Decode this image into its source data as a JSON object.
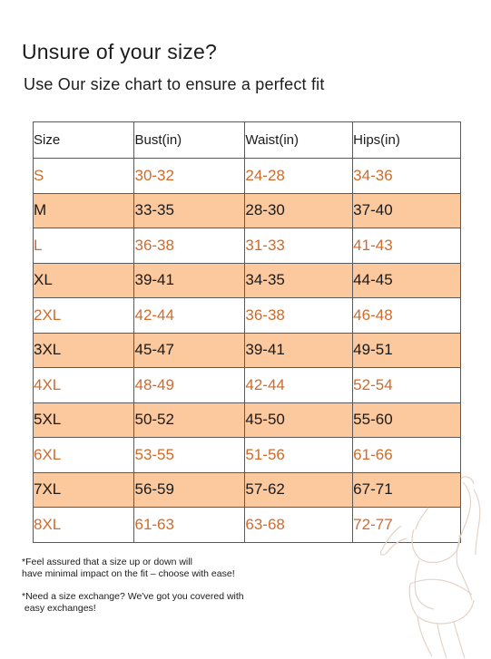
{
  "heading": {
    "title": "Unsure of your size?",
    "subtitle": "Use Our size chart to ensure a perfect fit"
  },
  "table": {
    "headers": [
      "Size",
      "Bust(in)",
      "Waist(in)",
      "Hips(in)"
    ],
    "rows": [
      {
        "size": "S",
        "bust": "30-32",
        "waist": "24-28",
        "hips": "34-36"
      },
      {
        "size": "M",
        "bust": "33-35",
        "waist": "28-30",
        "hips": "37-40"
      },
      {
        "size": "L",
        "bust": "36-38",
        "waist": "31-33",
        "hips": "41-43"
      },
      {
        "size": "XL",
        "bust": "39-41",
        "waist": "34-35",
        "hips": "44-45"
      },
      {
        "size": "2XL",
        "bust": "42-44",
        "waist": "36-38",
        "hips": "46-48"
      },
      {
        "size": "3XL",
        "bust": "45-47",
        "waist": "39-41",
        "hips": "49-51"
      },
      {
        "size": "4XL",
        "bust": "48-49",
        "waist": "42-44",
        "hips": "52-54"
      },
      {
        "size": "5XL",
        "bust": "50-52",
        "waist": "45-50",
        "hips": "55-60"
      },
      {
        "size": "6XL",
        "bust": "53-55",
        "waist": "51-56",
        "hips": "61-66"
      },
      {
        "size": "7XL",
        "bust": "56-59",
        "waist": "57-62",
        "hips": "67-71"
      },
      {
        "size": "8XL",
        "bust": "61-63",
        "waist": "63-68",
        "hips": "72-77"
      }
    ]
  },
  "notes": {
    "fit_line1": "*Feel assured that a size up or down will",
    "fit_line2": "have minimal impact on the fit – choose with ease!",
    "exchange_line1": "*Need a size exchange? We've got you covered with",
    "exchange_line2": " easy exchanges!"
  },
  "colors": {
    "shaded_row": "#fcc99e",
    "accent_text": "#cf6b2c",
    "border": "#5a5a5a"
  }
}
